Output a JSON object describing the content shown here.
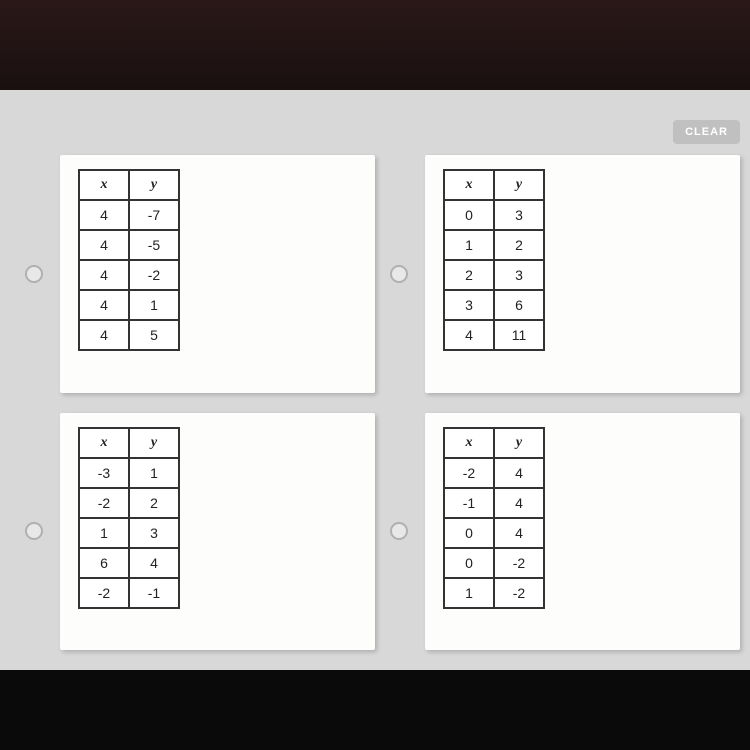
{
  "clear_button": "CLEAR",
  "options": [
    {
      "headers": {
        "x": "x",
        "y": "y"
      },
      "rows": [
        {
          "x": "4",
          "y": "-7"
        },
        {
          "x": "4",
          "y": "-5"
        },
        {
          "x": "4",
          "y": "-2"
        },
        {
          "x": "4",
          "y": "1"
        },
        {
          "x": "4",
          "y": "5"
        }
      ]
    },
    {
      "headers": {
        "x": "x",
        "y": "y"
      },
      "rows": [
        {
          "x": "0",
          "y": "3"
        },
        {
          "x": "1",
          "y": "2"
        },
        {
          "x": "2",
          "y": "3"
        },
        {
          "x": "3",
          "y": "6"
        },
        {
          "x": "4",
          "y": "11"
        }
      ]
    },
    {
      "headers": {
        "x": "x",
        "y": "y"
      },
      "rows": [
        {
          "x": "-3",
          "y": "1"
        },
        {
          "x": "-2",
          "y": "2"
        },
        {
          "x": "1",
          "y": "3"
        },
        {
          "x": "6",
          "y": "4"
        },
        {
          "x": "-2",
          "y": "-1"
        }
      ]
    },
    {
      "headers": {
        "x": "x",
        "y": "y"
      },
      "rows": [
        {
          "x": "-2",
          "y": "4"
        },
        {
          "x": "-1",
          "y": "4"
        },
        {
          "x": "0",
          "y": "4"
        },
        {
          "x": "0",
          "y": "-2"
        },
        {
          "x": "1",
          "y": "-2"
        }
      ]
    }
  ],
  "colors": {
    "page_bg": "#d8d8d8",
    "card_bg": "#fdfdfb",
    "table_border": "#333333",
    "clear_bg": "#c0c0c0",
    "clear_text": "#ffffff"
  }
}
